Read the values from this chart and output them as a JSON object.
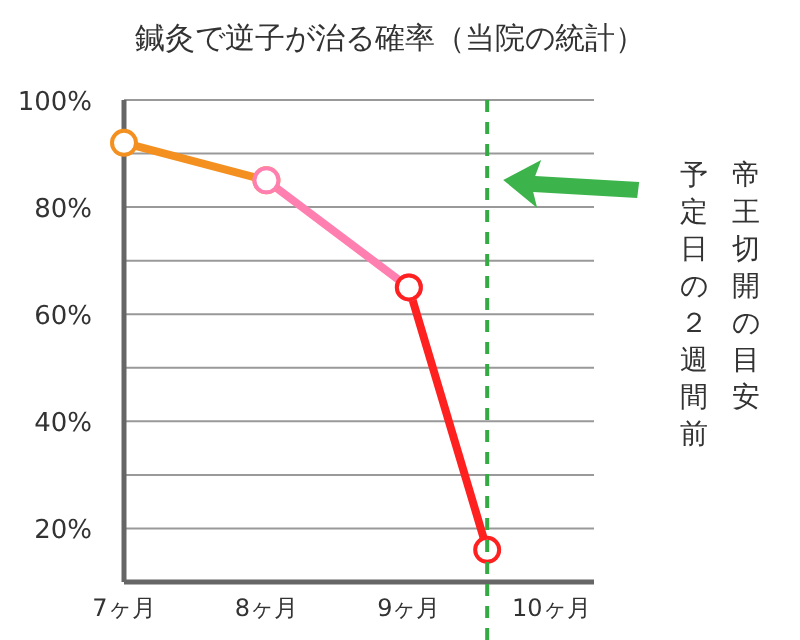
{
  "chart_data": {
    "type": "line",
    "title": "鍼灸で逆子が治る確率（当院の統計）",
    "xlim": [
      7,
      10.3
    ],
    "xticks": [
      {
        "value": 7,
        "label": "7ヶ月"
      },
      {
        "value": 8,
        "label": "8ヶ月"
      },
      {
        "value": 9,
        "label": "9ヶ月"
      },
      {
        "value": 10,
        "label": "10ヶ月"
      }
    ],
    "ylim": [
      10,
      100
    ],
    "yticks": [
      {
        "value": 20,
        "label": "20%"
      },
      {
        "value": 30,
        "label": null
      },
      {
        "value": 40,
        "label": "40%"
      },
      {
        "value": 50,
        "label": null
      },
      {
        "value": 60,
        "label": "60%"
      },
      {
        "value": 70,
        "label": null
      },
      {
        "value": 80,
        "label": "80%"
      },
      {
        "value": 90,
        "label": null
      },
      {
        "value": 100,
        "label": "100%"
      }
    ],
    "grid": "y",
    "marker": "circle",
    "line_style": "solid",
    "series": [
      {
        "color": "#f39020",
        "x": [
          7,
          8
        ],
        "values": [
          92,
          85
        ]
      },
      {
        "color": "#ff80b0",
        "x": [
          8,
          9
        ],
        "values": [
          85,
          65
        ]
      },
      {
        "color": "#ff2020",
        "x": [
          9,
          9.55
        ],
        "values": [
          65,
          16
        ]
      }
    ],
    "annotations": [
      "帝王切開の目安",
      "予定日の２週間前"
    ],
    "ref_lines": [
      {
        "axis": "x",
        "value": 9.55,
        "color": "#33aa44",
        "line_style": "dashed"
      }
    ]
  }
}
